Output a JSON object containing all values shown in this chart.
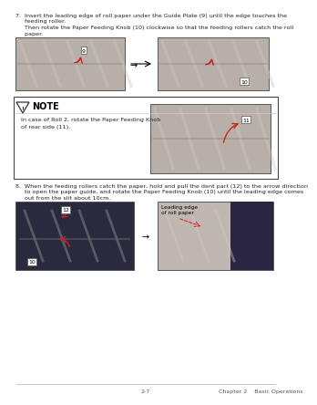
{
  "bg_color": "#ffffff",
  "text_color": "#222222",
  "step7_line1": "7.  Insert the leading edge of roll paper under the Guide Plate (9) until the edge touches the",
  "step7_line2": "     feeding roller.",
  "step7_line3": "     Then rotate the Paper Feeding Knob (10) clockwise so that the feeding rollers catch the roll",
  "step7_line4": "     paper.",
  "note_title": "NOTE",
  "note_body_line1": "In case of Roll 2, rotate the Paper Feeding Knob",
  "note_body_line2": "of rear side (11).",
  "step8_line1": "8.  When the feeding rollers catch the paper, hold and pull the dent part (12) to the arrow direction",
  "step8_line2": "     to open the paper guide, and rotate the Paper Feeding Knob (10) until the leading edge comes",
  "step8_line3": "     out from the slit about 10cm.",
  "footer_page": "2-7",
  "footer_chapter": "Chapter 2    Basic Operations",
  "lbl1": "9",
  "lbl2": "10",
  "lbl3": "11",
  "lbl4": "12",
  "lbl5": "10",
  "lbl6a": "Leading edge",
  "lbl6b": "of roll paper",
  "red": "#cc2222",
  "dark_gray": "#555555",
  "mid_gray": "#999999",
  "img_gray": "#b8b0a8",
  "img_dark": "#2a2a3e",
  "img_right6": "#8888a0",
  "note_border": "#444444"
}
